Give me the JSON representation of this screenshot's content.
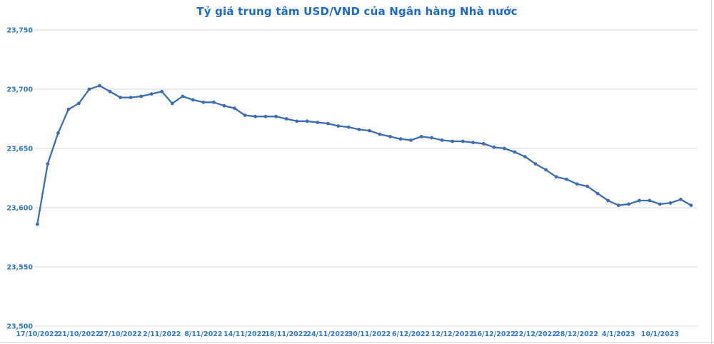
{
  "colors": {
    "title": "#1a6bcc",
    "tick_labels": "#2e79cd",
    "line": "#3d6db5",
    "marker": "#3d6db5",
    "gridline": "#d9d9d9",
    "border": "#d9d9d9",
    "background": "#ffffff"
  },
  "chart_data": {
    "type": "line",
    "title": "Tỷ giá trung tâm USD/VND của Ngân hàng Nhà nước",
    "series_name": "Tỷ giá trung tâm USD/VND",
    "x": [
      "17/10/2022",
      "18/10/2022",
      "19/10/2022",
      "20/10/2022",
      "21/10/2022",
      "24/10/2022",
      "25/10/2022",
      "26/10/2022",
      "27/10/2022",
      "28/10/2022",
      "31/10/2022",
      "1/11/2022",
      "2/11/2022",
      "3/11/2022",
      "4/11/2022",
      "7/11/2022",
      "8/11/2022",
      "9/11/2022",
      "10/11/2022",
      "11/11/2022",
      "14/11/2022",
      "15/11/2022",
      "16/11/2022",
      "17/11/2022",
      "18/11/2022",
      "21/11/2022",
      "22/11/2022",
      "23/11/2022",
      "24/11/2022",
      "25/11/2022",
      "28/11/2022",
      "29/11/2022",
      "30/11/2022",
      "1/12/2022",
      "2/12/2022",
      "5/12/2022",
      "6/12/2022",
      "7/12/2022",
      "8/12/2022",
      "9/12/2022",
      "12/12/2022",
      "13/12/2022",
      "14/12/2022",
      "15/12/2022",
      "16/12/2022",
      "19/12/2022",
      "20/12/2022",
      "21/12/2022",
      "22/12/2022",
      "23/12/2022",
      "26/12/2022",
      "27/12/2022",
      "28/12/2022",
      "29/12/2022",
      "30/12/2022",
      "3/1/2023",
      "4/1/2023",
      "5/1/2023",
      "6/1/2023",
      "9/1/2023",
      "10/1/2023",
      "11/1/2023",
      "12/1/2023",
      "13/1/2023"
    ],
    "series": [
      {
        "name": "Tỷ giá trung tâm USD/VND",
        "values": [
          23586,
          23637,
          23663,
          23683,
          23688,
          23700,
          23703,
          23698,
          23693,
          23693,
          23694,
          23696,
          23698,
          23688,
          23694,
          23691,
          23689,
          23689,
          23686,
          23684,
          23678,
          23677,
          23677,
          23677,
          23675,
          23673,
          23673,
          23672,
          23671,
          23669,
          23668,
          23666,
          23665,
          23662,
          23660,
          23658,
          23657,
          23660,
          23659,
          23657,
          23656,
          23656,
          23655,
          23654,
          23651,
          23650,
          23647,
          23643,
          23637,
          23632,
          23626,
          23624,
          23620,
          23618,
          23612,
          23606,
          23602,
          23603,
          23606,
          23606,
          23603,
          23604,
          23607,
          23602
        ]
      }
    ],
    "x_tick_labels": [
      "17/10/2022",
      "21/10/2022",
      "27/10/2022",
      "2/11/2022",
      "8/11/2022",
      "14/11/2022",
      "18/11/2022",
      "24/11/2022",
      "30/11/2022",
      "6/12/2022",
      "12/12/2022",
      "16/12/2022",
      "22/12/2022",
      "28/12/2022",
      "4/1/2023",
      "10/1/2023"
    ],
    "x_tick_every": 4,
    "y_ticks": [
      23500,
      23550,
      23600,
      23650,
      23700,
      23750
    ],
    "ylim": [
      23500,
      23750
    ],
    "grid": "horizontal",
    "legend": "none",
    "marker": "circle",
    "xlabel": "",
    "ylabel": ""
  }
}
